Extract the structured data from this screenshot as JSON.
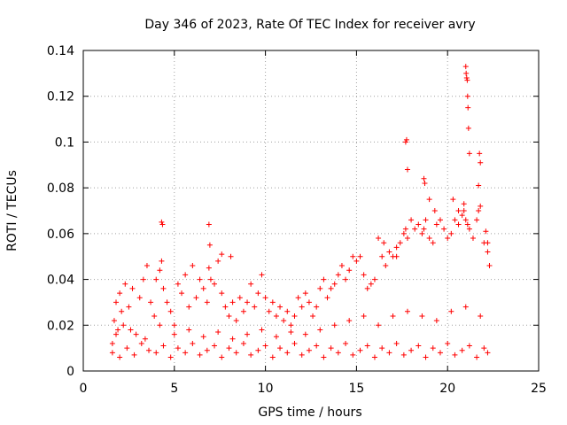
{
  "chart_data": {
    "type": "scatter",
    "title": "Day 346 of 2023, Rate Of TEC Index for receiver avry",
    "xlabel": "GPS time / hours",
    "ylabel": "ROTI / TECUs",
    "xlim": [
      0,
      25
    ],
    "ylim": [
      0,
      0.14
    ],
    "xticks": [
      0,
      5,
      10,
      15,
      20,
      25
    ],
    "yticks": [
      0,
      0.02,
      0.04,
      0.06,
      0.08,
      0.1,
      0.12,
      0.14
    ],
    "xtick_labels": [
      "0",
      "5",
      "10",
      "15",
      "20",
      "25"
    ],
    "ytick_labels": [
      "0",
      "0.02",
      "0.04",
      "0.06",
      "0.08",
      "0.1",
      "0.12",
      "0.14"
    ],
    "grid": true,
    "marker": "plus",
    "series_color": "#ff0000",
    "series": [
      {
        "name": "ROTI",
        "x": [
          1.6,
          1.7,
          1.8,
          1.9,
          2.0,
          2.1,
          2.2,
          2.3,
          2.5,
          2.7,
          2.9,
          3.1,
          3.3,
          3.5,
          3.7,
          3.9,
          4.0,
          4.2,
          4.3,
          4.4,
          4.6,
          4.8,
          5.0,
          5.2,
          5.4,
          5.6,
          5.8,
          6.0,
          6.2,
          6.4,
          6.6,
          6.8,
          6.9,
          7.0,
          7.2,
          7.4,
          7.6,
          7.8,
          8.0,
          8.2,
          8.4,
          8.6,
          8.8,
          9.0,
          9.2,
          9.4,
          9.6,
          9.8,
          10.0,
          10.2,
          10.4,
          10.6,
          10.8,
          11.0,
          11.2,
          11.4,
          11.6,
          11.8,
          12.0,
          12.2,
          12.4,
          12.6,
          12.8,
          13.0,
          13.2,
          13.4,
          13.6,
          13.8,
          14.0,
          14.2,
          14.4,
          14.6,
          14.8,
          15.0,
          15.2,
          15.4,
          15.6,
          15.8,
          16.0,
          16.2,
          16.4,
          16.6,
          16.8,
          17.0,
          17.2,
          17.4,
          17.6,
          17.7,
          17.8,
          18.0,
          18.2,
          18.4,
          18.6,
          18.7,
          18.8,
          19.0,
          19.2,
          19.4,
          19.6,
          19.8,
          20.0,
          20.2,
          20.4,
          20.6,
          20.8,
          20.9,
          21.0,
          21.1,
          21.2,
          21.4,
          21.6,
          21.7,
          21.8,
          22.0,
          22.2,
          22.3,
          1.6,
          2.0,
          2.4,
          2.8,
          3.2,
          3.6,
          4.0,
          4.4,
          4.8,
          5.2,
          5.6,
          6.0,
          6.4,
          6.8,
          7.2,
          7.6,
          8.0,
          8.4,
          8.8,
          9.2,
          9.6,
          10.0,
          10.4,
          10.8,
          11.2,
          11.6,
          12.0,
          12.4,
          12.8,
          13.2,
          13.6,
          14.0,
          14.4,
          14.8,
          15.2,
          15.6,
          16.0,
          16.4,
          16.8,
          17.2,
          17.6,
          18.0,
          18.4,
          18.8,
          19.2,
          19.6,
          20.0,
          20.4,
          20.8,
          21.2,
          21.6,
          22.0,
          22.2,
          1.8,
          2.6,
          3.4,
          4.2,
          5.0,
          5.8,
          6.6,
          7.4,
          8.2,
          9.0,
          9.8,
          10.6,
          11.4,
          12.2,
          13.0,
          13.8,
          14.6,
          15.4,
          16.2,
          17.0,
          17.8,
          18.6,
          19.4,
          20.2,
          21.0,
          21.8,
          4.3,
          4.35,
          6.9,
          6.95,
          7.6,
          8.1,
          16.5,
          17.2,
          17.7,
          17.75,
          17.8,
          18.7,
          18.75,
          19.0,
          19.3,
          20.3,
          20.6,
          20.9,
          21.0,
          21.02,
          21.05,
          21.08,
          21.1,
          21.12,
          21.15,
          21.2,
          21.7,
          21.75,
          21.8,
          22.1,
          22.2
        ],
        "y": [
          0.012,
          0.022,
          0.03,
          0.018,
          0.034,
          0.026,
          0.02,
          0.038,
          0.028,
          0.036,
          0.016,
          0.032,
          0.04,
          0.046,
          0.03,
          0.024,
          0.04,
          0.044,
          0.048,
          0.036,
          0.03,
          0.026,
          0.02,
          0.038,
          0.034,
          0.042,
          0.028,
          0.046,
          0.032,
          0.04,
          0.036,
          0.03,
          0.045,
          0.04,
          0.038,
          0.048,
          0.034,
          0.028,
          0.024,
          0.03,
          0.022,
          0.032,
          0.026,
          0.03,
          0.038,
          0.028,
          0.034,
          0.042,
          0.032,
          0.026,
          0.03,
          0.024,
          0.028,
          0.022,
          0.026,
          0.02,
          0.024,
          0.032,
          0.028,
          0.034,
          0.03,
          0.024,
          0.028,
          0.036,
          0.04,
          0.032,
          0.036,
          0.038,
          0.042,
          0.046,
          0.04,
          0.044,
          0.05,
          0.048,
          0.05,
          0.042,
          0.036,
          0.038,
          0.04,
          0.058,
          0.05,
          0.046,
          0.052,
          0.05,
          0.054,
          0.056,
          0.06,
          0.062,
          0.058,
          0.066,
          0.062,
          0.064,
          0.06,
          0.062,
          0.066,
          0.058,
          0.056,
          0.064,
          0.066,
          0.062,
          0.058,
          0.06,
          0.066,
          0.064,
          0.068,
          0.07,
          0.066,
          0.064,
          0.062,
          0.058,
          0.066,
          0.07,
          0.072,
          0.056,
          0.052,
          0.046,
          0.008,
          0.006,
          0.01,
          0.007,
          0.012,
          0.009,
          0.008,
          0.011,
          0.006,
          0.01,
          0.008,
          0.012,
          0.007,
          0.009,
          0.011,
          0.006,
          0.01,
          0.008,
          0.012,
          0.007,
          0.009,
          0.011,
          0.006,
          0.01,
          0.008,
          0.012,
          0.007,
          0.009,
          0.011,
          0.006,
          0.01,
          0.008,
          0.012,
          0.007,
          0.009,
          0.011,
          0.006,
          0.01,
          0.008,
          0.012,
          0.007,
          0.009,
          0.011,
          0.006,
          0.01,
          0.008,
          0.012,
          0.007,
          0.009,
          0.011,
          0.006,
          0.01,
          0.008,
          0.016,
          0.018,
          0.014,
          0.02,
          0.016,
          0.018,
          0.015,
          0.017,
          0.014,
          0.016,
          0.018,
          0.015,
          0.017,
          0.016,
          0.018,
          0.02,
          0.022,
          0.024,
          0.02,
          0.024,
          0.026,
          0.024,
          0.022,
          0.026,
          0.028,
          0.024,
          0.065,
          0.064,
          0.064,
          0.055,
          0.051,
          0.05,
          0.056,
          0.05,
          0.1,
          0.101,
          0.088,
          0.084,
          0.082,
          0.075,
          0.07,
          0.075,
          0.07,
          0.073,
          0.133,
          0.13,
          0.128,
          0.127,
          0.12,
          0.115,
          0.106,
          0.095,
          0.081,
          0.095,
          0.091,
          0.061,
          0.056
        ]
      }
    ]
  }
}
